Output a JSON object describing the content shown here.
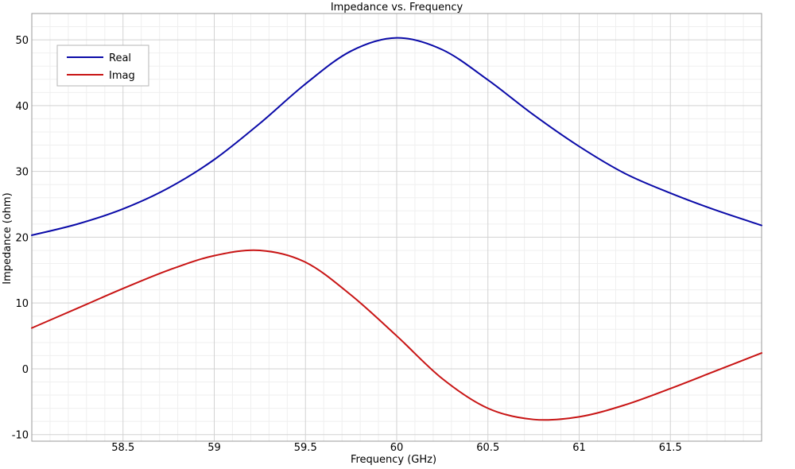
{
  "chart_data": {
    "type": "line",
    "title": "Impedance vs. Frequency",
    "xlabel": "Frequency (GHz)",
    "ylabel": "Impedance (ohm)",
    "xlim": [
      58,
      62
    ],
    "ylim": [
      -11,
      54
    ],
    "x_ticks": [
      58.5,
      59,
      59.5,
      60,
      60.5,
      61,
      61.5
    ],
    "x_tick_labels": [
      "58.5",
      "59",
      "59.5",
      "60",
      "60.5",
      "61",
      "61.5"
    ],
    "y_ticks": [
      -10,
      0,
      10,
      20,
      30,
      40,
      50
    ],
    "y_tick_labels": [
      "-10",
      "0",
      "10",
      "20",
      "30",
      "40",
      "50"
    ],
    "grid": true,
    "legend_position": "top-left",
    "series": [
      {
        "name": "Real",
        "color": "#0a0aa8",
        "x": [
          58.0,
          58.25,
          58.5,
          58.75,
          59.0,
          59.25,
          59.5,
          59.75,
          60.0,
          60.25,
          60.5,
          60.75,
          61.0,
          61.25,
          61.5,
          61.75,
          62.0
        ],
        "y": [
          20.3,
          22.0,
          24.3,
          27.5,
          31.8,
          37.3,
          43.3,
          48.3,
          50.3,
          48.5,
          43.9,
          38.6,
          33.8,
          29.7,
          26.7,
          24.1,
          21.8
        ]
      },
      {
        "name": "Imag",
        "color": "#c81414",
        "x": [
          58.0,
          58.25,
          58.5,
          58.75,
          59.0,
          59.25,
          59.5,
          59.75,
          60.0,
          60.25,
          60.5,
          60.75,
          61.0,
          61.25,
          61.5,
          61.75,
          62.0
        ],
        "y": [
          6.2,
          9.2,
          12.2,
          15.0,
          17.2,
          18.0,
          16.2,
          11.2,
          5.0,
          -1.5,
          -6.0,
          -7.7,
          -7.3,
          -5.5,
          -3.0,
          -0.3,
          2.4
        ]
      }
    ]
  }
}
